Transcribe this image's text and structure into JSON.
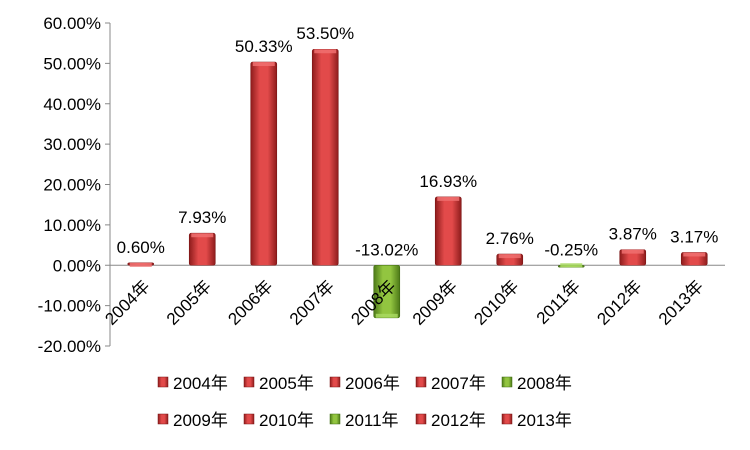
{
  "chart_data": {
    "type": "bar",
    "categories": [
      "2004年",
      "2005年",
      "2006年",
      "2007年",
      "2008年",
      "2009年",
      "2010年",
      "2011年",
      "2012年",
      "2013年"
    ],
    "values": [
      0.6,
      7.93,
      50.33,
      53.5,
      -13.02,
      16.93,
      2.76,
      -0.25,
      3.87,
      3.17
    ],
    "data_labels": [
      "0.60%",
      "7.93%",
      "50.33%",
      "53.50%",
      "-13.02%",
      "16.93%",
      "2.76%",
      "-0.25%",
      "3.87%",
      "3.17%"
    ],
    "y_ticks": [
      -20,
      -10,
      0,
      10,
      20,
      30,
      40,
      50,
      60
    ],
    "y_tick_labels": [
      "-20.00%",
      "-10.00%",
      "0.00%",
      "10.00%",
      "20.00%",
      "30.00%",
      "40.00%",
      "50.00%",
      "60.00%"
    ],
    "ylim": [
      -20,
      60
    ],
    "title": "",
    "xlabel": "",
    "ylabel": "",
    "grid": false,
    "legend": {
      "placement": "bottom",
      "entries": [
        "2004年",
        "2005年",
        "2006年",
        "2007年",
        "2008年",
        "2009年",
        "2010年",
        "2011年",
        "2012年",
        "2013年"
      ]
    },
    "bar_colors": [
      "#d93a3a",
      "#d93a3a",
      "#d93a3a",
      "#d93a3a",
      "#7fb832",
      "#d93a3a",
      "#d93a3a",
      "#7fb832",
      "#d93a3a",
      "#d93a3a"
    ]
  }
}
